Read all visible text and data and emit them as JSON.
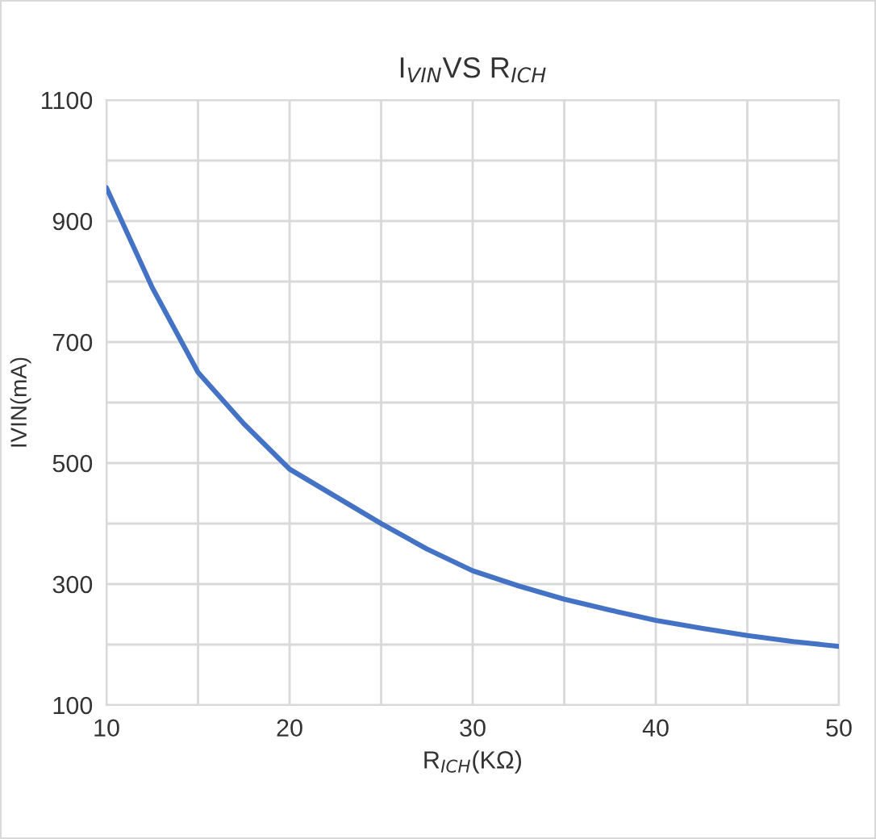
{
  "chart_data": {
    "type": "line",
    "title": "I$_{VIN}$VS R$_{ICH}$",
    "xlabel": "R$_{ICH}$(KΩ)",
    "ylabel": "IVIN(mA)",
    "series": [
      {
        "color": "#4472c4",
        "x": [
          10,
          12.5,
          15,
          17.5,
          20,
          22.5,
          25,
          27.5,
          30,
          32.5,
          35,
          37.5,
          40,
          42.5,
          45,
          47.5,
          50
        ],
        "values": [
          955,
          790,
          650,
          565,
          490,
          445,
          400,
          358,
          322,
          297,
          275,
          257,
          240,
          227,
          215,
          205,
          197
        ]
      }
    ],
    "xlim": [
      10,
      50
    ],
    "ylim": [
      100,
      1100
    ],
    "xticks": [
      10,
      {
        "value": 15,
        "label": null
      },
      20,
      {
        "value": 25,
        "label": null
      },
      30,
      {
        "value": 35,
        "label": null
      },
      40,
      {
        "value": 45,
        "label": null
      },
      50
    ],
    "yticks": [
      100,
      {
        "value": 200,
        "label": null
      },
      300,
      {
        "value": 400,
        "label": null
      },
      500,
      {
        "value": 600,
        "label": null
      },
      700,
      {
        "value": 800,
        "label": null
      },
      900,
      {
        "value": 1000,
        "label": null
      },
      1100
    ],
    "grid": true,
    "legend": false,
    "marker": "none",
    "line_style": "solid"
  }
}
